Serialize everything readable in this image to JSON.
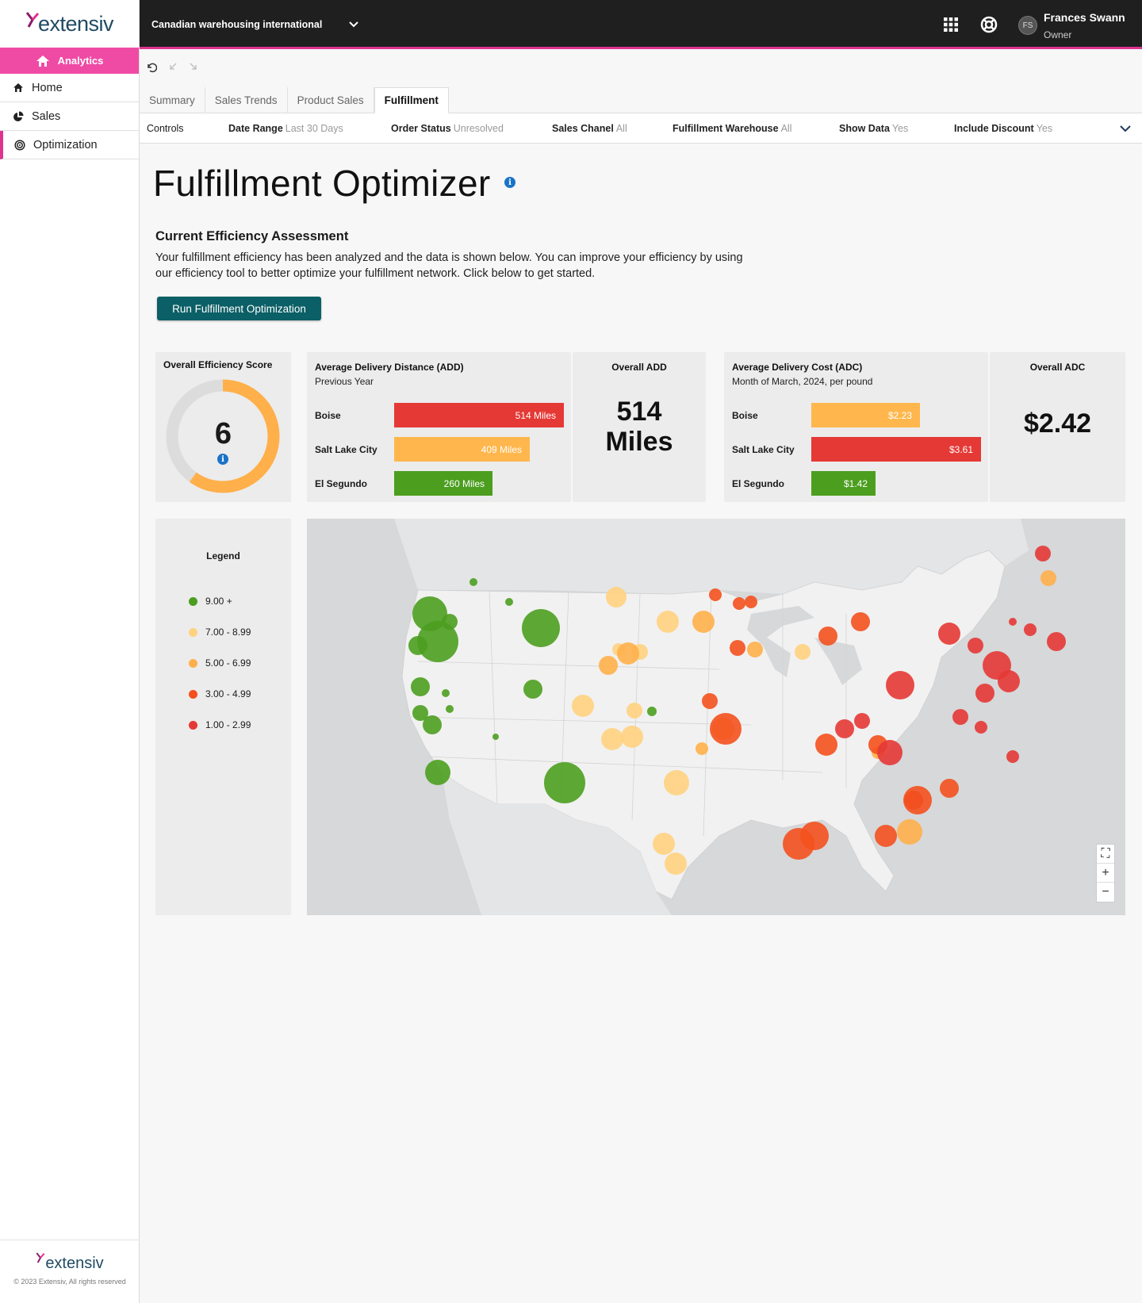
{
  "brand": {
    "name": "extensiv",
    "copyright": "© 2023 Extensiv, All rights reserved"
  },
  "sidebar": {
    "section": "Analytics",
    "items": [
      {
        "label": "Home",
        "icon": "home-icon"
      },
      {
        "label": "Sales",
        "icon": "pie-chart-icon"
      },
      {
        "label": "Optimization",
        "icon": "target-icon",
        "active": true
      }
    ]
  },
  "topbar": {
    "org": "Canadian warehousing international",
    "user_name": "Frances Swann",
    "user_role": "Owner",
    "avatar_initials": "FS"
  },
  "tabs": [
    "Summary",
    "Sales Trends",
    "Product Sales",
    "Fulfillment"
  ],
  "active_tab": "Fulfillment",
  "controls": {
    "label": "Controls",
    "filters": [
      {
        "name": "Date Range",
        "value": "Last 30 Days"
      },
      {
        "name": "Order Status",
        "value": "Unresolved"
      },
      {
        "name": "Sales Chanel",
        "value": "All"
      },
      {
        "name": "Fulfillment Warehouse",
        "value": "All"
      },
      {
        "name": "Show Data",
        "value": "Yes"
      },
      {
        "name": "Include Discount",
        "value": "Yes"
      }
    ]
  },
  "page": {
    "title": "Fulfillment Optimizer",
    "section_title": "Current Efficiency Assessment",
    "section_body_1": "Your fulfillment efficiency has been analyzed and the data is shown below.  You can improve your efficiency by using",
    "section_body_2": "our efficiency tool to better optimize your fulfillment network.  Click below to get started.",
    "run_button": "Run Fulfillment Optimization"
  },
  "efficiency": {
    "title": "Overall Efficiency Score",
    "score": "6",
    "score_fraction": 0.6
  },
  "add": {
    "title": "Average Delivery Distance (ADD)",
    "subtitle": "Previous Year",
    "rows": [
      {
        "label": "Boise",
        "value": "514 Miles",
        "fraction": 1.0,
        "color": "#e53935"
      },
      {
        "label": "Salt Lake City",
        "value": "409 Miles",
        "fraction": 0.8,
        "color": "#ffb74d"
      },
      {
        "label": "El Segundo",
        "value": "260 Miles",
        "fraction": 0.58,
        "color": "#4c9e1f"
      }
    ],
    "overall_title": "Overall ADD",
    "overall_value_1": "514",
    "overall_value_2": "Miles"
  },
  "adc": {
    "title": "Average Delivery Cost (ADC)",
    "subtitle": "Month of March, 2024, per pound",
    "rows": [
      {
        "label": "Boise",
        "value": "$2.23",
        "fraction": 0.64,
        "color": "#ffb74d"
      },
      {
        "label": "Salt Lake City",
        "value": "$3.61",
        "fraction": 1.0,
        "color": "#e53935"
      },
      {
        "label": "El Segundo",
        "value": "$1.42",
        "fraction": 0.38,
        "color": "#4c9e1f"
      }
    ],
    "overall_title": "Overall ADC",
    "overall_value": "$2.42"
  },
  "legend": {
    "title": "Legend",
    "items": [
      {
        "label": "9.00 +",
        "color": "#4c9e1f"
      },
      {
        "label": "7.00 - 8.99",
        "color": "#ffd27f"
      },
      {
        "label": "5.00 - 6.99",
        "color": "#ffb04a"
      },
      {
        "label": "3.00 - 4.99",
        "color": "#f4511e"
      },
      {
        "label": "1.00 - 2.99",
        "color": "#e53935"
      }
    ]
  },
  "colors": {
    "accent": "#e0338e",
    "button": "#0b5f66",
    "info": "#1a73c9"
  }
}
